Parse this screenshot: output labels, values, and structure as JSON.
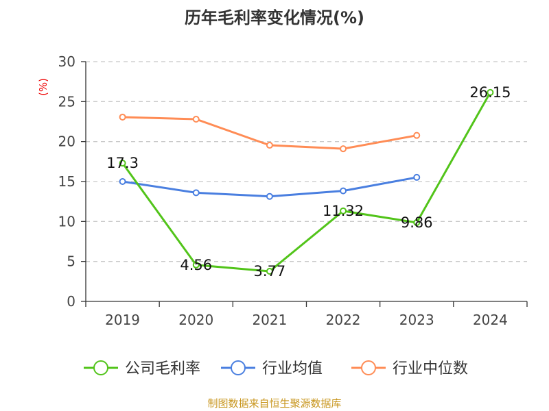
{
  "chart_data": {
    "type": "line",
    "title": "历年毛利率变化情况(%)",
    "ylabel": "(%)",
    "xlabel": "",
    "categories": [
      "2019",
      "2020",
      "2021",
      "2022",
      "2023",
      "2024"
    ],
    "ylim": [
      0,
      30
    ],
    "yticks": [
      0,
      5,
      10,
      15,
      20,
      25,
      30
    ],
    "grid": true,
    "legend_position": "bottom",
    "series": [
      {
        "name": "公司毛利率",
        "color": "#52c41a",
        "values": [
          17.3,
          4.56,
          3.77,
          11.32,
          9.86,
          26.15
        ],
        "labels": [
          "17.3",
          "4.56",
          "3.77",
          "11.32",
          "9.86",
          "26.15"
        ]
      },
      {
        "name": "行业均值",
        "color": "#4a7fe0",
        "values": [
          15.0,
          13.6,
          13.14,
          13.83,
          15.52,
          null
        ]
      },
      {
        "name": "行业中位数",
        "color": "#ff8c55",
        "values": [
          23.06,
          22.8,
          19.54,
          19.1,
          20.77,
          null
        ]
      }
    ]
  },
  "footer": "制图数据来自恒生聚源数据库"
}
